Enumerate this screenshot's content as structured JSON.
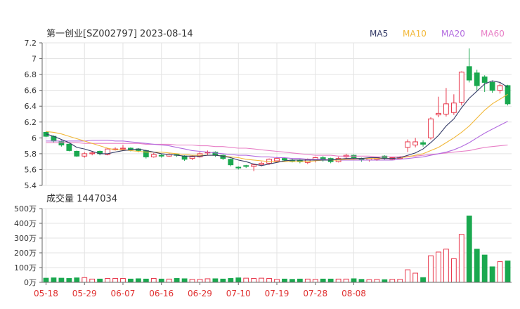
{
  "colors": {
    "up": "#e8364a",
    "down": "#1aa84f",
    "ma5": "#333a66",
    "ma10": "#f2b83a",
    "ma20": "#b26adf",
    "ma60": "#e87fc6",
    "grid": "#e3e3e3",
    "axis": "#666666",
    "xlabel": "#e03030"
  },
  "chart_data": [
    {
      "type": "candlestick",
      "title": "第一创业[SZ002797] 2023-08-14",
      "legend": [
        {
          "name": "MA5"
        },
        {
          "name": "MA10"
        },
        {
          "name": "MA20"
        },
        {
          "name": "MA60"
        }
      ],
      "legend_position": "top-right",
      "ylim": [
        5.4,
        7.2
      ],
      "yticks": [
        "7.2",
        "7",
        "6.8",
        "6.6",
        "6.4",
        "6.2",
        "6",
        "5.8",
        "5.6",
        "5.4"
      ],
      "xticks": [
        "05-18",
        "05-29",
        "06-07",
        "06-16",
        "06-29",
        "07-10",
        "07-19",
        "07-28",
        "08-08"
      ],
      "xtick_index": [
        0,
        5,
        10,
        15,
        20,
        25,
        30,
        35,
        40
      ],
      "grid": true,
      "candles": [
        [
          6.07,
          6.02,
          6.08,
          6.01
        ],
        [
          6.02,
          5.96,
          6.03,
          5.94
        ],
        [
          5.95,
          5.91,
          5.97,
          5.89
        ],
        [
          5.92,
          5.84,
          5.93,
          5.83
        ],
        [
          5.83,
          5.77,
          5.84,
          5.76
        ],
        [
          5.77,
          5.8,
          5.82,
          5.75
        ],
        [
          5.8,
          5.81,
          5.83,
          5.78
        ],
        [
          5.83,
          5.8,
          5.84,
          5.78
        ],
        [
          5.79,
          5.86,
          5.87,
          5.78
        ],
        [
          5.85,
          5.86,
          5.88,
          5.84
        ],
        [
          5.86,
          5.87,
          5.91,
          5.84
        ],
        [
          5.87,
          5.85,
          5.88,
          5.83
        ],
        [
          5.86,
          5.84,
          5.87,
          5.82
        ],
        [
          5.84,
          5.76,
          5.85,
          5.74
        ],
        [
          5.76,
          5.79,
          5.81,
          5.75
        ],
        [
          5.78,
          5.77,
          5.8,
          5.75
        ],
        [
          5.77,
          5.79,
          5.81,
          5.76
        ],
        [
          5.79,
          5.78,
          5.8,
          5.76
        ],
        [
          5.77,
          5.73,
          5.78,
          5.71
        ],
        [
          5.74,
          5.76,
          5.78,
          5.72
        ],
        [
          5.76,
          5.8,
          5.82,
          5.75
        ],
        [
          5.81,
          5.82,
          5.84,
          5.78
        ],
        [
          5.82,
          5.78,
          5.83,
          5.76
        ],
        [
          5.78,
          5.74,
          5.79,
          5.72
        ],
        [
          5.73,
          5.66,
          5.74,
          5.64
        ],
        [
          5.63,
          5.62,
          5.64,
          5.6
        ],
        [
          5.65,
          5.64,
          5.66,
          5.62
        ],
        [
          5.64,
          5.66,
          5.67,
          5.58
        ],
        [
          5.66,
          5.68,
          5.7,
          5.64
        ],
        [
          5.68,
          5.73,
          5.74,
          5.66
        ],
        [
          5.71,
          5.74,
          5.76,
          5.69
        ],
        [
          5.74,
          5.72,
          5.75,
          5.7
        ],
        [
          5.72,
          5.71,
          5.74,
          5.69
        ],
        [
          5.72,
          5.7,
          5.73,
          5.68
        ],
        [
          5.69,
          5.73,
          5.74,
          5.67
        ],
        [
          5.72,
          5.75,
          5.76,
          5.69
        ],
        [
          5.75,
          5.72,
          5.77,
          5.7
        ],
        [
          5.74,
          5.7,
          5.75,
          5.68
        ],
        [
          5.7,
          5.74,
          5.76,
          5.69
        ],
        [
          5.76,
          5.78,
          5.8,
          5.73
        ],
        [
          5.78,
          5.75,
          5.79,
          5.73
        ],
        [
          5.74,
          5.72,
          5.75,
          5.7
        ],
        [
          5.72,
          5.74,
          5.75,
          5.7
        ],
        [
          5.73,
          5.75,
          5.76,
          5.71
        ],
        [
          5.77,
          5.74,
          5.78,
          5.72
        ],
        [
          5.73,
          5.75,
          5.76,
          5.72
        ],
        [
          5.74,
          5.76,
          5.77,
          5.73
        ],
        [
          5.88,
          5.95,
          5.98,
          5.82
        ],
        [
          5.91,
          5.95,
          6.0,
          5.88
        ],
        [
          5.94,
          5.92,
          5.97,
          5.89
        ],
        [
          6.0,
          6.24,
          6.26,
          5.98
        ],
        [
          6.29,
          6.31,
          6.52,
          6.26
        ],
        [
          6.3,
          6.43,
          6.63,
          6.27
        ],
        [
          6.32,
          6.44,
          6.55,
          6.29
        ],
        [
          6.45,
          6.83,
          6.84,
          6.41
        ],
        [
          6.9,
          6.73,
          7.13,
          6.7
        ],
        [
          6.82,
          6.66,
          6.86,
          6.6
        ],
        [
          6.77,
          6.7,
          6.79,
          6.58
        ],
        [
          6.7,
          6.6,
          6.72,
          6.57
        ],
        [
          6.6,
          6.66,
          6.69,
          6.56
        ],
        [
          6.66,
          6.43,
          6.67,
          6.41
        ]
      ],
      "ma5": [
        6.05,
        6.02,
        5.98,
        5.94,
        5.88,
        5.86,
        5.83,
        5.8,
        5.8,
        5.82,
        5.84,
        5.85,
        5.86,
        5.84,
        5.82,
        5.8,
        5.79,
        5.78,
        5.77,
        5.77,
        5.77,
        5.78,
        5.78,
        5.77,
        5.75,
        5.72,
        5.7,
        5.67,
        5.65,
        5.67,
        5.69,
        5.71,
        5.72,
        5.72,
        5.72,
        5.72,
        5.72,
        5.72,
        5.73,
        5.74,
        5.74,
        5.74,
        5.75,
        5.75,
        5.74,
        5.74,
        5.75,
        5.78,
        5.81,
        5.86,
        5.94,
        6.03,
        6.15,
        6.24,
        6.38,
        6.5,
        6.59,
        6.68,
        6.72,
        6.7,
        6.64
      ],
      "ma10": [
        6.08,
        6.07,
        6.05,
        6.02,
        5.99,
        5.96,
        5.93,
        5.9,
        5.87,
        5.85,
        5.85,
        5.84,
        5.83,
        5.82,
        5.82,
        5.82,
        5.81,
        5.8,
        5.79,
        5.78,
        5.78,
        5.78,
        5.78,
        5.77,
        5.76,
        5.75,
        5.73,
        5.72,
        5.71,
        5.7,
        5.7,
        5.7,
        5.7,
        5.7,
        5.7,
        5.71,
        5.72,
        5.72,
        5.72,
        5.73,
        5.73,
        5.74,
        5.74,
        5.74,
        5.74,
        5.74,
        5.75,
        5.76,
        5.78,
        5.8,
        5.84,
        5.88,
        5.94,
        6.0,
        6.07,
        6.15,
        6.25,
        6.35,
        6.43,
        6.49,
        6.55
      ],
      "ma20": [
        5.96,
        5.96,
        5.96,
        5.96,
        5.96,
        5.96,
        5.97,
        5.97,
        5.97,
        5.96,
        5.96,
        5.95,
        5.94,
        5.93,
        5.92,
        5.91,
        5.9,
        5.88,
        5.86,
        5.84,
        5.83,
        5.82,
        5.81,
        5.8,
        5.79,
        5.78,
        5.78,
        5.77,
        5.76,
        5.76,
        5.75,
        5.75,
        5.74,
        5.74,
        5.73,
        5.73,
        5.73,
        5.72,
        5.72,
        5.72,
        5.72,
        5.72,
        5.72,
        5.72,
        5.72,
        5.72,
        5.73,
        5.74,
        5.75,
        5.76,
        5.78,
        5.8,
        5.82,
        5.85,
        5.89,
        5.94,
        6.0,
        6.06,
        6.11,
        6.16,
        6.21
      ],
      "ma60": [
        5.94,
        5.94,
        5.94,
        5.94,
        5.94,
        5.93,
        5.93,
        5.93,
        5.93,
        5.93,
        5.93,
        5.93,
        5.93,
        5.92,
        5.92,
        5.92,
        5.92,
        5.91,
        5.91,
        5.91,
        5.9,
        5.9,
        5.89,
        5.89,
        5.88,
        5.87,
        5.87,
        5.86,
        5.85,
        5.84,
        5.83,
        5.82,
        5.81,
        5.8,
        5.79,
        5.78,
        5.78,
        5.78,
        5.77,
        5.77,
        5.77,
        5.77,
        5.77,
        5.76,
        5.76,
        5.76,
        5.76,
        5.77,
        5.77,
        5.78,
        5.79,
        5.8,
        5.81,
        5.82,
        5.83,
        5.84,
        5.86,
        5.88,
        5.89,
        5.9,
        5.91
      ]
    },
    {
      "type": "bar",
      "title": "成交量 1447034",
      "ylim": [
        0,
        500
      ],
      "yticks": [
        "500万",
        "400万",
        "300万",
        "200万",
        "100万",
        "0万"
      ],
      "values": [
        28,
        30,
        28,
        26,
        30,
        32,
        22,
        22,
        26,
        26,
        26,
        22,
        24,
        22,
        26,
        22,
        22,
        26,
        24,
        20,
        20,
        24,
        24,
        22,
        26,
        30,
        28,
        26,
        28,
        26,
        20,
        22,
        20,
        22,
        22,
        20,
        22,
        22,
        22,
        22,
        24,
        20,
        18,
        20,
        18,
        20,
        20,
        85,
        62,
        32,
        180,
        205,
        225,
        160,
        325,
        450,
        225,
        185,
        105,
        140,
        145
      ],
      "up": [
        false,
        false,
        false,
        false,
        false,
        true,
        true,
        false,
        true,
        true,
        true,
        false,
        false,
        false,
        true,
        false,
        true,
        false,
        false,
        true,
        true,
        true,
        false,
        false,
        false,
        false,
        true,
        true,
        true,
        true,
        true,
        false,
        false,
        false,
        true,
        true,
        false,
        false,
        true,
        true,
        false,
        false,
        true,
        true,
        false,
        true,
        true,
        true,
        true,
        false,
        true,
        true,
        true,
        true,
        true,
        false,
        false,
        false,
        false,
        true,
        false
      ]
    }
  ]
}
